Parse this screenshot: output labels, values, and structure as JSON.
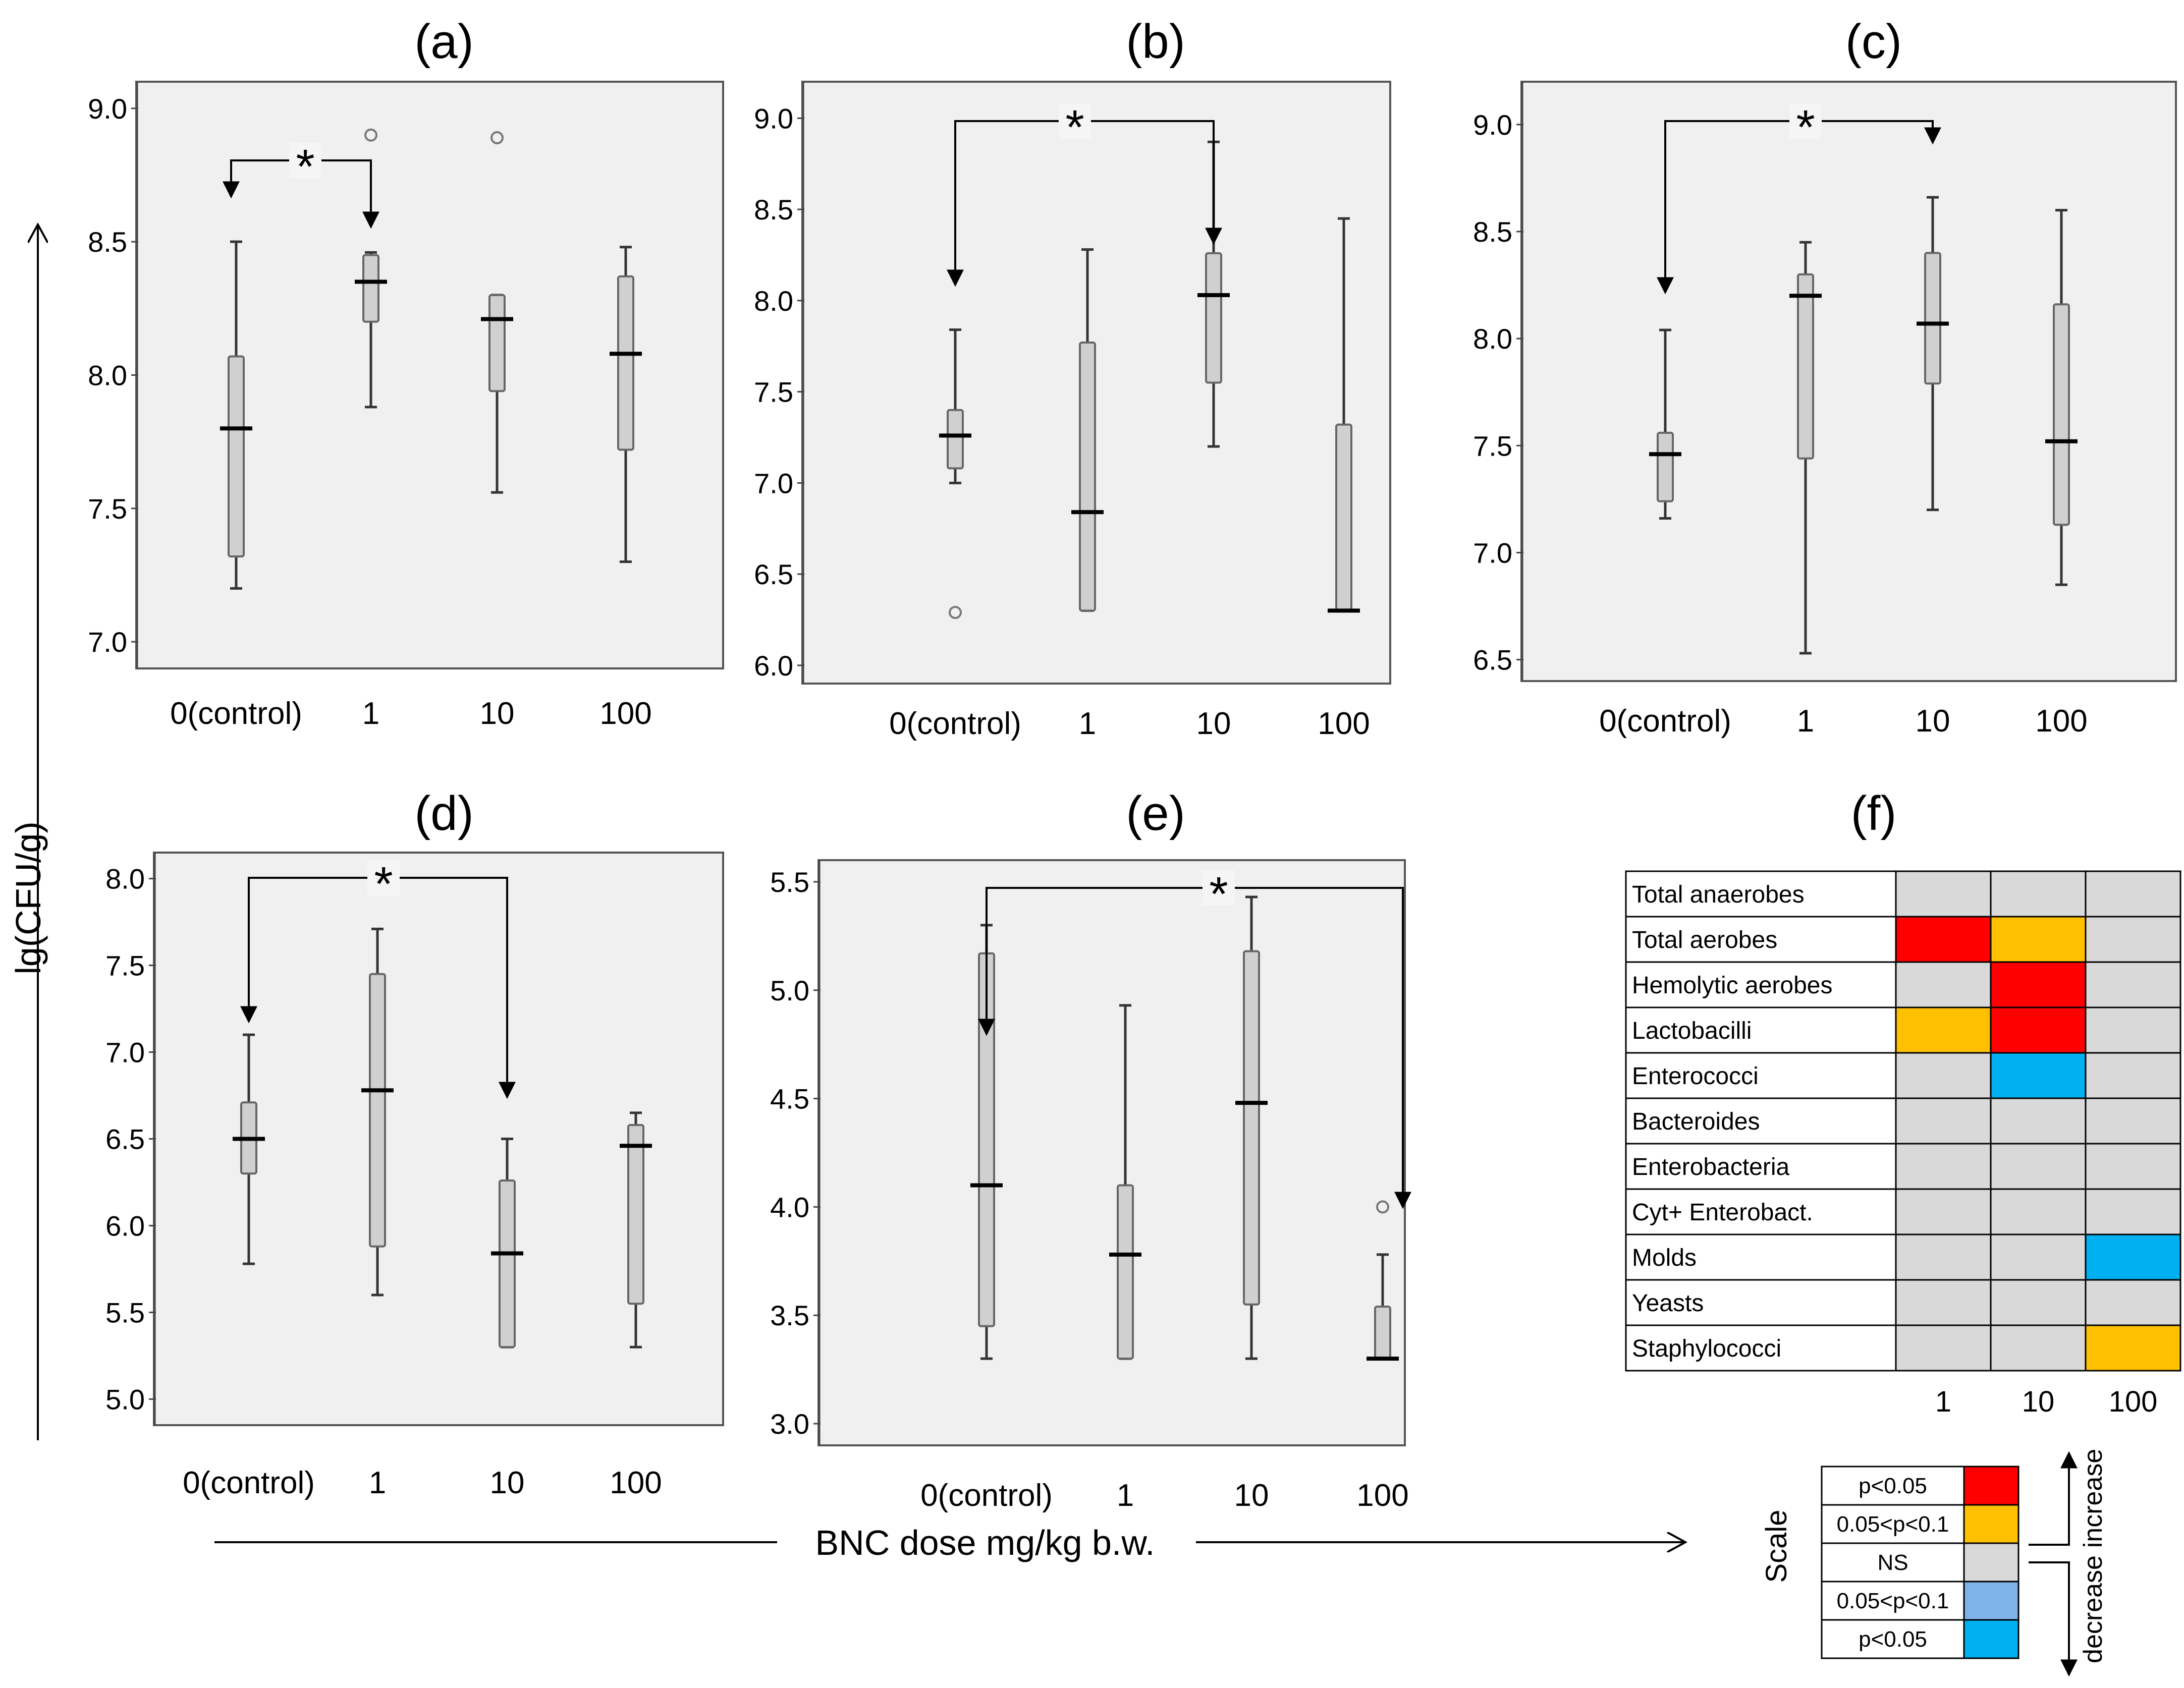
{
  "y_axis_label": "lg(CFU/g)",
  "x_axis_label": "BNC dose mg/kg b.w.",
  "significance_mark": "*",
  "chart_data": [
    {
      "panel": "(a)",
      "type": "box",
      "ylim": [
        6.9,
        9.1
      ],
      "yticks": [
        "7.0",
        "7.5",
        "8.0",
        "8.5",
        "9.0"
      ],
      "categories": [
        "0(control)",
        "1",
        "10",
        "100"
      ],
      "boxes": [
        {
          "min": 7.2,
          "q1": 7.32,
          "median": 7.8,
          "q3": 8.07,
          "max": 8.5,
          "outliers": []
        },
        {
          "min": 7.88,
          "q1": 8.2,
          "median": 8.35,
          "q3": 8.45,
          "max": 8.46,
          "outliers": [
            8.9
          ]
        },
        {
          "min": 7.56,
          "q1": 7.94,
          "median": 8.21,
          "q3": 8.3,
          "max": 8.3,
          "outliers": [
            8.89
          ]
        },
        {
          "min": 7.3,
          "q1": 7.72,
          "median": 8.08,
          "q3": 8.37,
          "max": 8.48,
          "outliers": []
        }
      ],
      "significance": {
        "from": 0,
        "to": 1,
        "label": "*"
      }
    },
    {
      "panel": "(b)",
      "type": "box",
      "ylim": [
        5.9,
        9.2
      ],
      "yticks": [
        "6.0",
        "6.5",
        "7.0",
        "7.5",
        "8.0",
        "8.5",
        "9.0"
      ],
      "categories": [
        "0(control)",
        "1",
        "10",
        "100"
      ],
      "boxes": [
        {
          "min": 7.0,
          "q1": 7.08,
          "median": 7.26,
          "q3": 7.4,
          "max": 7.84,
          "outliers": [
            6.29
          ]
        },
        {
          "min": 6.3,
          "q1": 6.3,
          "median": 6.84,
          "q3": 7.77,
          "max": 8.28,
          "outliers": []
        },
        {
          "min": 7.2,
          "q1": 7.55,
          "median": 8.03,
          "q3": 8.26,
          "max": 8.87,
          "outliers": []
        },
        {
          "min": 6.3,
          "q1": 6.3,
          "median": 6.3,
          "q3": 7.32,
          "max": 8.45,
          "outliers": []
        }
      ],
      "significance": {
        "from": 0,
        "to": 2,
        "label": "*"
      }
    },
    {
      "panel": "(c)",
      "type": "box",
      "ylim": [
        6.4,
        9.2
      ],
      "yticks": [
        "6.5",
        "7.0",
        "7.5",
        "8.0",
        "8.5",
        "9.0"
      ],
      "categories": [
        "0(control)",
        "1",
        "10",
        "100"
      ],
      "boxes": [
        {
          "min": 7.16,
          "q1": 7.24,
          "median": 7.46,
          "q3": 7.56,
          "max": 8.04,
          "outliers": []
        },
        {
          "min": 6.53,
          "q1": 7.44,
          "median": 8.2,
          "q3": 8.3,
          "max": 8.45,
          "outliers": []
        },
        {
          "min": 7.2,
          "q1": 7.79,
          "median": 8.07,
          "q3": 8.4,
          "max": 8.66,
          "outliers": []
        },
        {
          "min": 6.85,
          "q1": 7.13,
          "median": 7.52,
          "q3": 8.16,
          "max": 8.6,
          "outliers": []
        }
      ],
      "significance": {
        "from": 0,
        "to": 2,
        "label": "*"
      }
    },
    {
      "panel": "(d)",
      "type": "box",
      "ylim": [
        4.85,
        8.15
      ],
      "yticks": [
        "5.0",
        "5.5",
        "6.0",
        "6.5",
        "7.0",
        "7.5",
        "8.0"
      ],
      "categories": [
        "0(control)",
        "1",
        "10",
        "100"
      ],
      "boxes": [
        {
          "min": 5.78,
          "q1": 6.3,
          "median": 6.5,
          "q3": 6.71,
          "max": 7.1,
          "outliers": []
        },
        {
          "min": 5.6,
          "q1": 5.88,
          "median": 6.78,
          "q3": 7.45,
          "max": 7.71,
          "outliers": []
        },
        {
          "min": 5.3,
          "q1": 5.3,
          "median": 5.84,
          "q3": 6.26,
          "max": 6.5,
          "outliers": []
        },
        {
          "min": 5.3,
          "q1": 5.55,
          "median": 6.46,
          "q3": 6.58,
          "max": 6.65,
          "outliers": []
        }
      ],
      "significance": {
        "from": 0,
        "to": 2,
        "label": "*"
      }
    },
    {
      "panel": "(e)",
      "type": "box",
      "ylim": [
        2.9,
        5.6
      ],
      "yticks": [
        "3.0",
        "3.5",
        "4.0",
        "4.5",
        "5.0",
        "5.5"
      ],
      "categories": [
        "0(control)",
        "1",
        "10",
        "100"
      ],
      "boxes": [
        {
          "min": 3.3,
          "q1": 3.45,
          "median": 4.1,
          "q3": 5.17,
          "max": 5.3,
          "outliers": []
        },
        {
          "min": 3.3,
          "q1": 3.3,
          "median": 3.78,
          "q3": 4.1,
          "max": 4.93,
          "outliers": []
        },
        {
          "min": 3.3,
          "q1": 3.55,
          "median": 4.48,
          "q3": 5.18,
          "max": 5.43,
          "outliers": []
        },
        {
          "min": 3.3,
          "q1": 3.3,
          "median": 3.3,
          "q3": 3.54,
          "max": 3.78,
          "outliers": [
            4.0
          ]
        }
      ],
      "significance": {
        "from": 0,
        "to": 3,
        "label": "*"
      }
    },
    {
      "panel": "(f)",
      "type": "heatmap",
      "rows": [
        "Total anaerobes",
        "Total aerobes",
        "Hemolytic aerobes",
        "Lactobacilli",
        "Enterococci",
        "Bacteroides",
        "Enterobacteria",
        "Cyt+ Enterobact.",
        "Molds",
        "Yeasts",
        "Staphylococci"
      ],
      "columns": [
        "1",
        "10",
        "100"
      ],
      "cells": [
        [
          "NS",
          "NS",
          "NS"
        ],
        [
          "inc_p005",
          "inc_p01",
          "NS"
        ],
        [
          "NS",
          "inc_p005",
          "NS"
        ],
        [
          "inc_p01",
          "inc_p005",
          "NS"
        ],
        [
          "NS",
          "dec_p005",
          "NS"
        ],
        [
          "NS",
          "NS",
          "NS"
        ],
        [
          "NS",
          "NS",
          "NS"
        ],
        [
          "NS",
          "NS",
          "NS"
        ],
        [
          "NS",
          "NS",
          "dec_p005"
        ],
        [
          "NS",
          "NS",
          "NS"
        ],
        [
          "NS",
          "NS",
          "inc_p01"
        ]
      ],
      "scale_title": "Scale",
      "scale": [
        {
          "key": "inc_p005",
          "label": "p<0.05",
          "color": "#ff0000"
        },
        {
          "key": "inc_p01",
          "label": "0.05<p<0.1",
          "color": "#ffc000"
        },
        {
          "key": "NS",
          "label": "NS",
          "color": "#d9d9d9"
        },
        {
          "key": "dec_p01",
          "label": "0.05<p<0.1",
          "color": "#7eb4ea"
        },
        {
          "key": "dec_p005",
          "label": "p<0.05",
          "color": "#00b0f0"
        }
      ],
      "increase_label": "increase",
      "decrease_label": "decrease"
    }
  ]
}
